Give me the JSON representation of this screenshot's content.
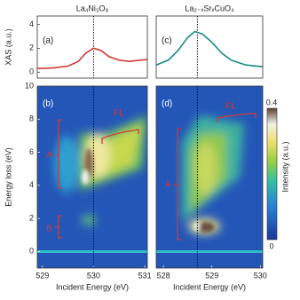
{
  "chart_data": [
    {
      "type": "line",
      "title": "La₄Ni₃O₈",
      "y_label": "XAS (a.u.)",
      "annotation": "(a)",
      "x": [
        528.9,
        529.2,
        529.5,
        529.7,
        529.85,
        530,
        530.15,
        530.3,
        530.5,
        530.7,
        530.9,
        531.05
      ],
      "series": [
        {
          "color": "#d03a35",
          "values": [
            0.3,
            0.35,
            0.5,
            0.9,
            1.6,
            2.0,
            1.8,
            1.3,
            1.0,
            0.9,
            1.0,
            1.05
          ]
        }
      ],
      "xlim": [
        528.9,
        531.05
      ],
      "ylim": [
        -0.5,
        4.7
      ],
      "yticks": [
        0,
        2,
        4
      ],
      "vline": 530
    },
    {
      "type": "heatmap",
      "y_label": "Energy loss (eV)",
      "x_label": "Incident Energy (eV)",
      "annotations": [
        "(b)",
        "A",
        "B",
        "FL"
      ],
      "xlim": [
        528.9,
        531.05
      ],
      "xticks": [
        529,
        530,
        531
      ],
      "ylim": [
        -1,
        10
      ],
      "yticks": [
        0,
        2,
        4,
        6,
        8,
        10
      ],
      "vline": 530
    },
    {
      "type": "line",
      "title": "La₂₋ₓSrₓCuO₄",
      "annotation": "(c)",
      "x": [
        527.85,
        528.1,
        528.3,
        528.5,
        528.65,
        528.8,
        529,
        529.2,
        529.4,
        529.7,
        530.05
      ],
      "series": [
        {
          "color": "#1a8a8a",
          "values": [
            0.6,
            1.0,
            1.8,
            2.9,
            3.4,
            3.2,
            2.5,
            1.6,
            1.0,
            0.6,
            0.45
          ]
        }
      ],
      "xlim": [
        527.85,
        530.05
      ],
      "ylim": [
        -0.5,
        4.7
      ],
      "vline": 528.7
    },
    {
      "type": "heatmap",
      "x_label": "Incident Energy (eV)",
      "annotations": [
        "(d)",
        "A",
        "FL"
      ],
      "xlim": [
        527.85,
        530.05
      ],
      "xticks": [
        528,
        529,
        530
      ],
      "ylim": [
        -1,
        10
      ],
      "vline": 528.7,
      "colorbar": {
        "label": "Intensity (a.u.)",
        "lim": [
          0,
          0.4
        ],
        "ticks": [
          0.4,
          0
        ]
      }
    }
  ]
}
